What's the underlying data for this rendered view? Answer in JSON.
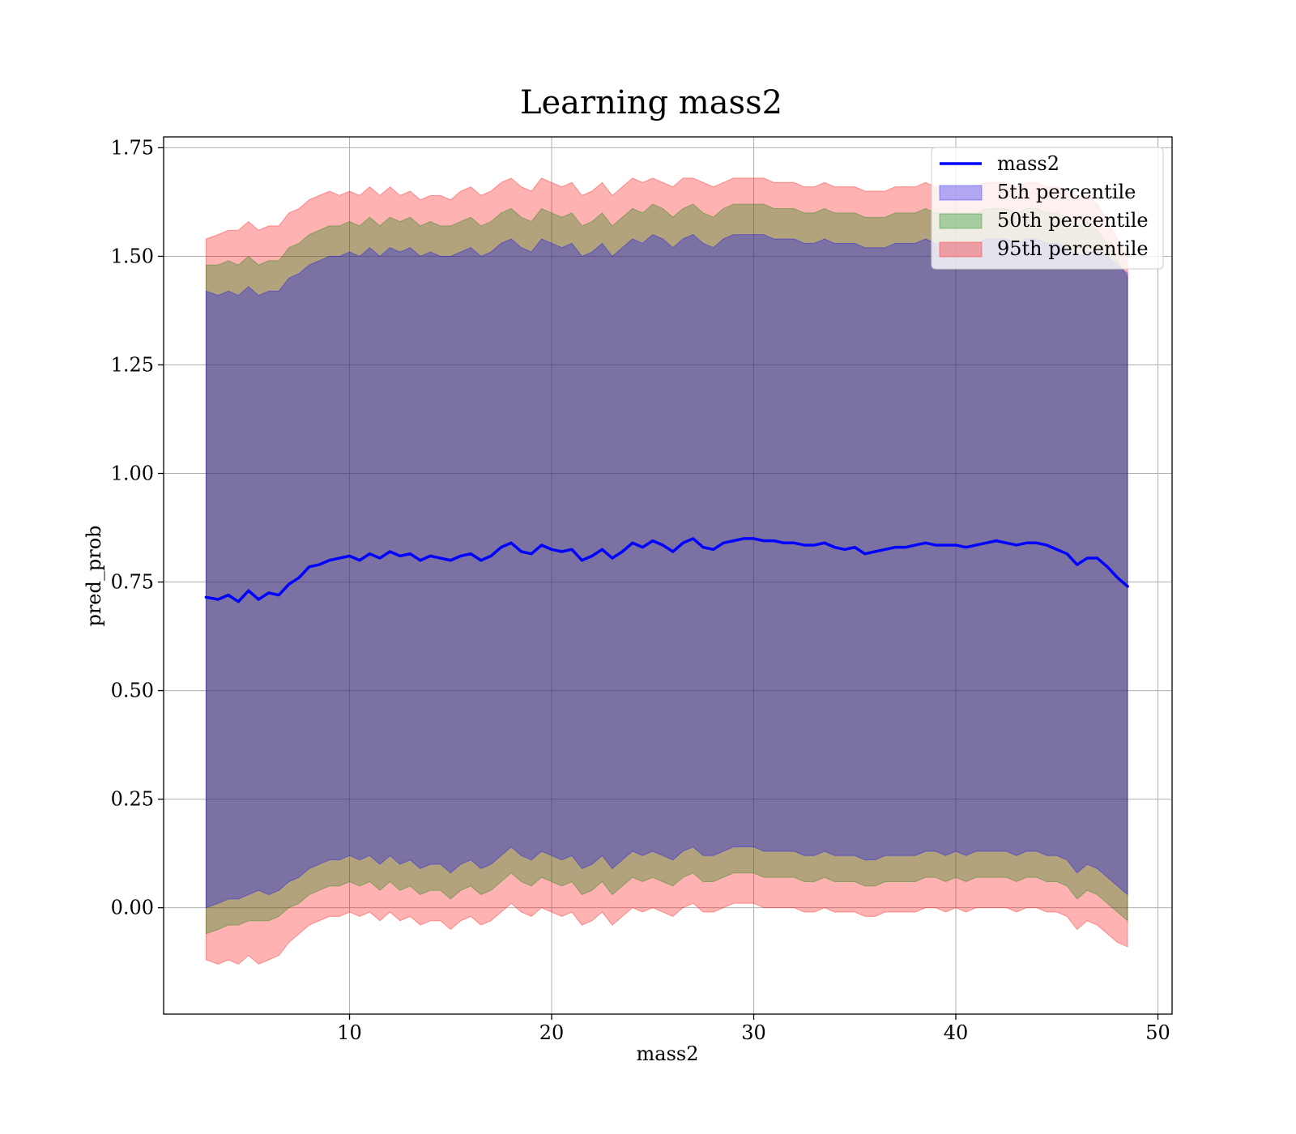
{
  "chart_data": {
    "type": "line",
    "title": "Learning mass2",
    "xlabel": "mass2",
    "ylabel": "pred_prob",
    "xlim": [
      0.8,
      50.7
    ],
    "ylim": [
      -0.245,
      1.775
    ],
    "xticks": [
      10,
      20,
      30,
      40,
      50
    ],
    "yticks": [
      0.0,
      0.25,
      0.5,
      0.75,
      1.0,
      1.25,
      1.5,
      1.75
    ],
    "xtick_labels": [
      "10",
      "20",
      "30",
      "40",
      "50"
    ],
    "ytick_labels": [
      "0.00",
      "0.25",
      "0.50",
      "0.75",
      "1.00",
      "1.25",
      "1.50",
      "1.75"
    ],
    "grid": true,
    "legend_position": "top-right",
    "x": [
      2.9,
      3.5,
      4.0,
      4.5,
      5.0,
      5.5,
      6.0,
      6.5,
      7.0,
      7.5,
      8.0,
      8.5,
      9.0,
      9.5,
      10.0,
      10.5,
      11.0,
      11.5,
      12.0,
      12.5,
      13.0,
      13.5,
      14.0,
      14.5,
      15.0,
      15.5,
      16.0,
      16.5,
      17.0,
      17.5,
      18.0,
      18.5,
      19.0,
      19.5,
      20.0,
      20.5,
      21.0,
      21.5,
      22.0,
      22.5,
      23.0,
      23.5,
      24.0,
      24.5,
      25.0,
      25.5,
      26.0,
      26.5,
      27.0,
      27.5,
      28.0,
      28.5,
      29.0,
      29.5,
      30.0,
      30.5,
      31.0,
      31.5,
      32.0,
      32.5,
      33.0,
      33.5,
      34.0,
      34.5,
      35.0,
      35.5,
      36.0,
      36.5,
      37.0,
      37.5,
      38.0,
      38.5,
      39.0,
      39.5,
      40.0,
      40.5,
      41.0,
      41.5,
      42.0,
      42.5,
      43.0,
      43.5,
      44.0,
      44.5,
      45.0,
      45.5,
      46.0,
      46.5,
      47.0,
      47.5,
      48.0,
      48.5
    ],
    "series": [
      {
        "name": "mass2",
        "color": "#0000ff",
        "values": [
          0.715,
          0.71,
          0.72,
          0.705,
          0.73,
          0.71,
          0.725,
          0.72,
          0.745,
          0.76,
          0.785,
          0.79,
          0.8,
          0.805,
          0.81,
          0.8,
          0.815,
          0.805,
          0.82,
          0.81,
          0.815,
          0.8,
          0.81,
          0.805,
          0.8,
          0.81,
          0.815,
          0.8,
          0.81,
          0.83,
          0.84,
          0.82,
          0.815,
          0.835,
          0.825,
          0.82,
          0.825,
          0.8,
          0.81,
          0.825,
          0.805,
          0.82,
          0.84,
          0.83,
          0.845,
          0.835,
          0.82,
          0.84,
          0.85,
          0.83,
          0.825,
          0.84,
          0.845,
          0.85,
          0.85,
          0.845,
          0.845,
          0.84,
          0.84,
          0.835,
          0.835,
          0.84,
          0.83,
          0.825,
          0.83,
          0.815,
          0.82,
          0.825,
          0.83,
          0.83,
          0.835,
          0.84,
          0.835,
          0.835,
          0.835,
          0.83,
          0.835,
          0.84,
          0.845,
          0.84,
          0.835,
          0.84,
          0.84,
          0.835,
          0.825,
          0.815,
          0.79,
          0.805,
          0.805,
          0.785,
          0.76,
          0.74
        ]
      },
      {
        "name": "5th percentile",
        "color": "#0000ff",
        "lower": [
          0.0,
          0.01,
          0.02,
          0.02,
          0.03,
          0.04,
          0.03,
          0.04,
          0.06,
          0.07,
          0.09,
          0.1,
          0.11,
          0.11,
          0.12,
          0.11,
          0.12,
          0.1,
          0.12,
          0.1,
          0.11,
          0.09,
          0.1,
          0.1,
          0.08,
          0.1,
          0.11,
          0.09,
          0.1,
          0.12,
          0.14,
          0.12,
          0.11,
          0.13,
          0.12,
          0.11,
          0.12,
          0.09,
          0.1,
          0.12,
          0.09,
          0.11,
          0.13,
          0.12,
          0.13,
          0.12,
          0.11,
          0.13,
          0.14,
          0.12,
          0.12,
          0.13,
          0.14,
          0.14,
          0.14,
          0.13,
          0.13,
          0.13,
          0.13,
          0.12,
          0.12,
          0.13,
          0.12,
          0.12,
          0.12,
          0.11,
          0.11,
          0.12,
          0.12,
          0.12,
          0.12,
          0.13,
          0.13,
          0.12,
          0.13,
          0.12,
          0.13,
          0.13,
          0.13,
          0.13,
          0.12,
          0.13,
          0.13,
          0.12,
          0.12,
          0.11,
          0.08,
          0.1,
          0.09,
          0.07,
          0.05,
          0.03
        ],
        "upper": [
          1.42,
          1.41,
          1.42,
          1.41,
          1.43,
          1.41,
          1.42,
          1.42,
          1.45,
          1.46,
          1.48,
          1.49,
          1.5,
          1.5,
          1.51,
          1.5,
          1.52,
          1.5,
          1.52,
          1.51,
          1.52,
          1.5,
          1.51,
          1.5,
          1.5,
          1.51,
          1.52,
          1.5,
          1.51,
          1.53,
          1.54,
          1.52,
          1.51,
          1.54,
          1.53,
          1.52,
          1.53,
          1.5,
          1.51,
          1.53,
          1.5,
          1.52,
          1.54,
          1.53,
          1.55,
          1.54,
          1.52,
          1.54,
          1.55,
          1.53,
          1.52,
          1.54,
          1.55,
          1.55,
          1.55,
          1.55,
          1.54,
          1.54,
          1.54,
          1.53,
          1.53,
          1.54,
          1.53,
          1.53,
          1.53,
          1.52,
          1.52,
          1.52,
          1.53,
          1.53,
          1.53,
          1.54,
          1.53,
          1.53,
          1.53,
          1.53,
          1.53,
          1.54,
          1.54,
          1.54,
          1.53,
          1.54,
          1.54,
          1.53,
          1.53,
          1.52,
          1.5,
          1.51,
          1.51,
          1.5,
          1.48,
          1.46
        ]
      },
      {
        "name": "50th percentile",
        "color": "#008000",
        "lower": [
          -0.06,
          -0.05,
          -0.04,
          -0.04,
          -0.03,
          -0.03,
          -0.03,
          -0.02,
          0.0,
          0.01,
          0.03,
          0.04,
          0.05,
          0.05,
          0.06,
          0.05,
          0.06,
          0.04,
          0.06,
          0.04,
          0.05,
          0.03,
          0.04,
          0.04,
          0.02,
          0.04,
          0.05,
          0.03,
          0.04,
          0.06,
          0.08,
          0.06,
          0.05,
          0.07,
          0.06,
          0.05,
          0.06,
          0.03,
          0.04,
          0.06,
          0.03,
          0.05,
          0.07,
          0.06,
          0.07,
          0.06,
          0.05,
          0.07,
          0.08,
          0.06,
          0.06,
          0.07,
          0.08,
          0.08,
          0.08,
          0.07,
          0.07,
          0.07,
          0.07,
          0.06,
          0.06,
          0.07,
          0.06,
          0.06,
          0.06,
          0.05,
          0.05,
          0.06,
          0.06,
          0.06,
          0.06,
          0.07,
          0.07,
          0.06,
          0.07,
          0.06,
          0.07,
          0.07,
          0.07,
          0.07,
          0.06,
          0.07,
          0.07,
          0.06,
          0.06,
          0.05,
          0.02,
          0.04,
          0.03,
          0.01,
          -0.01,
          -0.03
        ],
        "upper": [
          1.48,
          1.48,
          1.49,
          1.48,
          1.5,
          1.48,
          1.49,
          1.49,
          1.52,
          1.53,
          1.55,
          1.56,
          1.57,
          1.57,
          1.58,
          1.57,
          1.59,
          1.57,
          1.59,
          1.58,
          1.59,
          1.57,
          1.58,
          1.57,
          1.57,
          1.58,
          1.59,
          1.57,
          1.58,
          1.6,
          1.61,
          1.59,
          1.58,
          1.61,
          1.6,
          1.59,
          1.6,
          1.57,
          1.58,
          1.6,
          1.57,
          1.59,
          1.61,
          1.6,
          1.62,
          1.61,
          1.59,
          1.61,
          1.62,
          1.6,
          1.59,
          1.61,
          1.62,
          1.62,
          1.62,
          1.62,
          1.61,
          1.61,
          1.61,
          1.6,
          1.6,
          1.61,
          1.6,
          1.6,
          1.6,
          1.59,
          1.59,
          1.59,
          1.6,
          1.6,
          1.6,
          1.61,
          1.6,
          1.6,
          1.6,
          1.6,
          1.6,
          1.61,
          1.61,
          1.61,
          1.6,
          1.61,
          1.61,
          1.6,
          1.6,
          1.59,
          1.57,
          1.58,
          1.56,
          1.53,
          1.49,
          1.45
        ]
      },
      {
        "name": "95th percentile",
        "color": "#ff0000",
        "lower": [
          -0.12,
          -0.13,
          -0.12,
          -0.13,
          -0.11,
          -0.13,
          -0.12,
          -0.11,
          -0.08,
          -0.06,
          -0.04,
          -0.03,
          -0.02,
          -0.02,
          -0.01,
          -0.02,
          -0.01,
          -0.03,
          -0.01,
          -0.03,
          -0.02,
          -0.04,
          -0.03,
          -0.03,
          -0.05,
          -0.03,
          -0.02,
          -0.04,
          -0.03,
          -0.01,
          0.01,
          -0.01,
          -0.02,
          0.0,
          -0.01,
          -0.02,
          -0.01,
          -0.04,
          -0.03,
          -0.01,
          -0.04,
          -0.02,
          0.0,
          -0.01,
          0.0,
          -0.01,
          -0.02,
          0.0,
          0.01,
          -0.01,
          -0.01,
          0.0,
          0.01,
          0.01,
          0.01,
          0.0,
          0.0,
          0.0,
          0.0,
          -0.01,
          -0.01,
          0.0,
          -0.01,
          -0.01,
          -0.01,
          -0.02,
          -0.02,
          -0.01,
          -0.01,
          -0.01,
          -0.01,
          0.0,
          0.0,
          -0.01,
          0.0,
          -0.01,
          0.0,
          0.0,
          0.0,
          0.0,
          -0.01,
          0.0,
          0.0,
          -0.01,
          -0.01,
          -0.02,
          -0.05,
          -0.03,
          -0.04,
          -0.06,
          -0.08,
          -0.09
        ],
        "upper": [
          1.54,
          1.55,
          1.56,
          1.56,
          1.58,
          1.56,
          1.57,
          1.57,
          1.6,
          1.61,
          1.63,
          1.64,
          1.65,
          1.64,
          1.65,
          1.64,
          1.66,
          1.64,
          1.66,
          1.64,
          1.65,
          1.63,
          1.64,
          1.64,
          1.63,
          1.65,
          1.66,
          1.64,
          1.65,
          1.67,
          1.68,
          1.66,
          1.65,
          1.68,
          1.67,
          1.66,
          1.67,
          1.64,
          1.65,
          1.67,
          1.64,
          1.66,
          1.68,
          1.67,
          1.68,
          1.67,
          1.66,
          1.68,
          1.68,
          1.67,
          1.66,
          1.67,
          1.68,
          1.68,
          1.68,
          1.68,
          1.67,
          1.67,
          1.67,
          1.66,
          1.66,
          1.67,
          1.66,
          1.66,
          1.66,
          1.65,
          1.65,
          1.65,
          1.66,
          1.66,
          1.66,
          1.67,
          1.66,
          1.66,
          1.66,
          1.66,
          1.66,
          1.67,
          1.67,
          1.67,
          1.66,
          1.67,
          1.67,
          1.66,
          1.66,
          1.65,
          1.63,
          1.64,
          1.62,
          1.58,
          1.54,
          1.5
        ]
      }
    ]
  }
}
